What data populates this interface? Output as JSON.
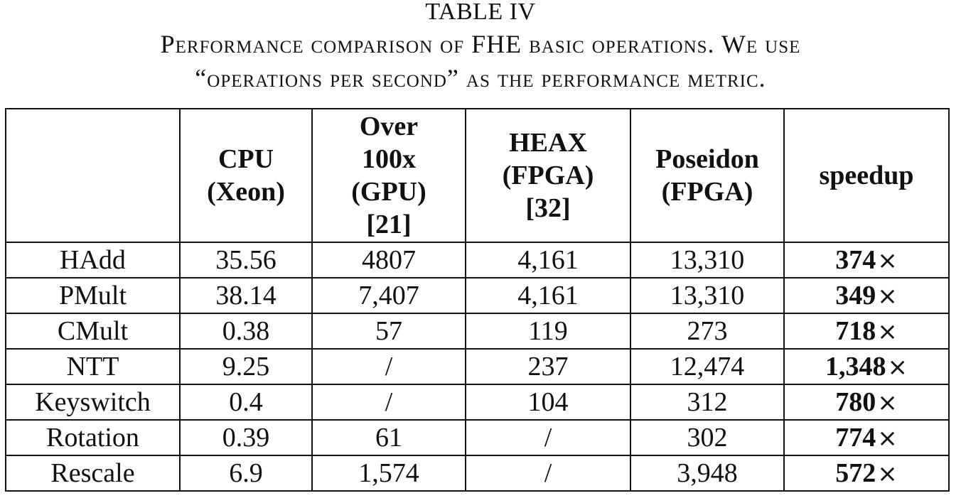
{
  "caption": {
    "label": "TABLE IV",
    "line1": "Performance comparison of FHE basic operations. We use",
    "line2": "“operations per second” as the performance metric."
  },
  "table": {
    "headers": [
      [
        ""
      ],
      [
        "CPU",
        "(Xeon)"
      ],
      [
        "Over",
        "100x",
        "(GPU)",
        "[21]"
      ],
      [
        "HEAX",
        "(FPGA)",
        "[32]"
      ],
      [
        "Poseidon",
        "(FPGA)"
      ],
      [
        "speedup"
      ]
    ],
    "rows": [
      {
        "op": "HAdd",
        "cpu": "35.56",
        "gpu": "4807",
        "heax": "4,161",
        "poseidon": "13,310",
        "speedup": "374",
        "unit": "×"
      },
      {
        "op": "PMult",
        "cpu": "38.14",
        "gpu": "7,407",
        "heax": "4,161",
        "poseidon": "13,310",
        "speedup": "349",
        "unit": "×"
      },
      {
        "op": "CMult",
        "cpu": "0.38",
        "gpu": "57",
        "heax": "119",
        "poseidon": "273",
        "speedup": "718",
        "unit": "×"
      },
      {
        "op": "NTT",
        "cpu": "9.25",
        "gpu": "/",
        "heax": "237",
        "poseidon": "12,474",
        "speedup": "1,348",
        "unit": "×"
      },
      {
        "op": "Keyswitch",
        "cpu": "0.4",
        "gpu": "/",
        "heax": "104",
        "poseidon": "312",
        "speedup": "780",
        "unit": "×"
      },
      {
        "op": "Rotation",
        "cpu": "0.39",
        "gpu": "61",
        "heax": "/",
        "poseidon": "302",
        "speedup": "774",
        "unit": "×"
      },
      {
        "op": "Rescale",
        "cpu": "6.9",
        "gpu": "1,574",
        "heax": "/",
        "poseidon": "3,948",
        "speedup": "572",
        "unit": "×"
      }
    ]
  }
}
